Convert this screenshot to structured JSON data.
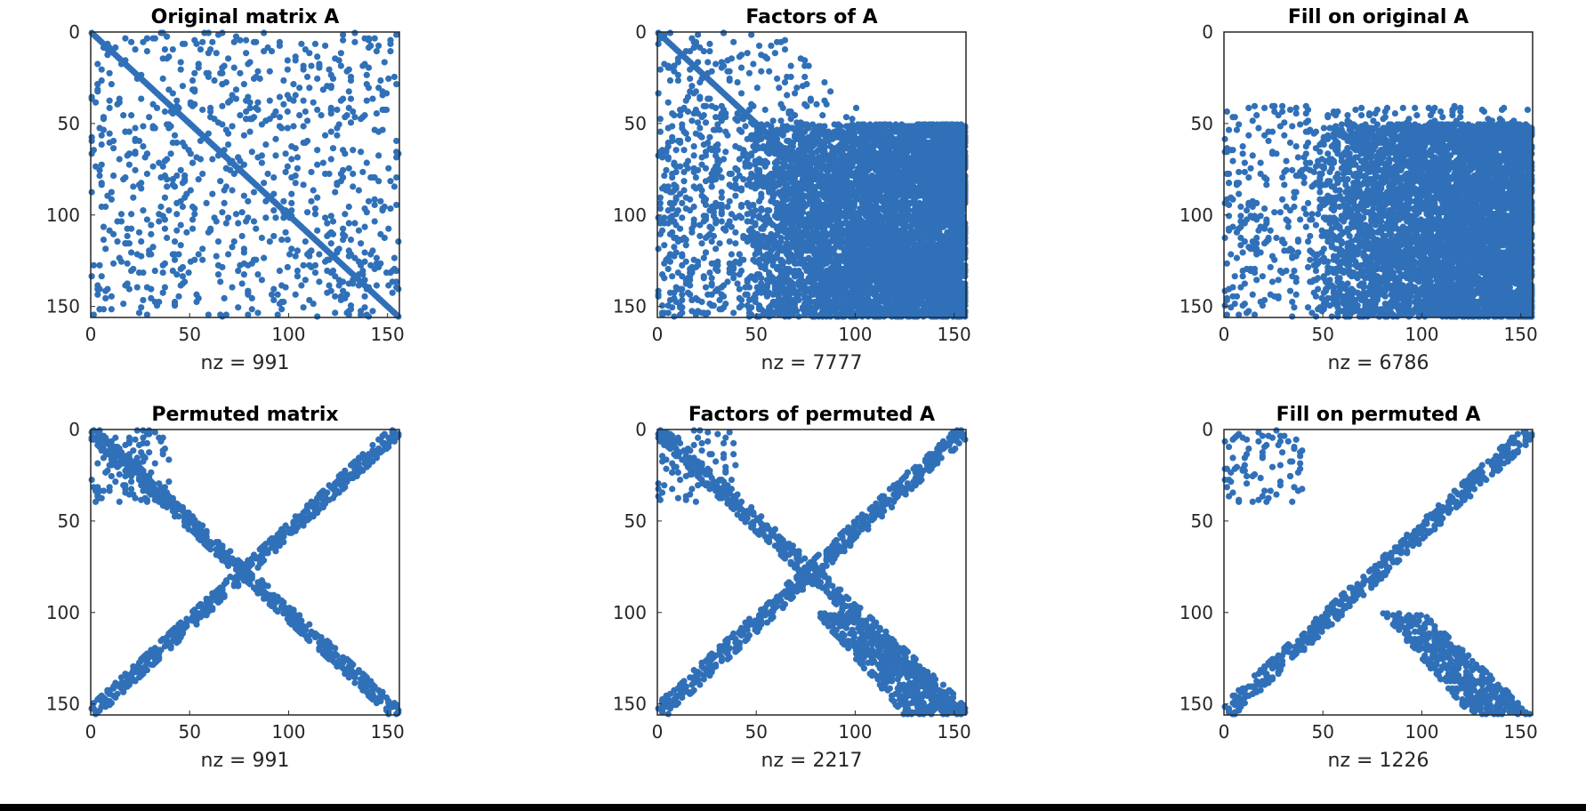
{
  "colors": {
    "marker": "#3070b8",
    "axes": "#262626",
    "background": "#ffffff"
  },
  "chart_data": [
    {
      "type": "scatter",
      "title": "Original matrix A",
      "xlabel": "nz = 991",
      "nz": 991,
      "size": 156,
      "xlim": [
        0,
        156
      ],
      "ylim": [
        156,
        0
      ],
      "xticks": [
        0,
        50,
        100,
        150
      ],
      "yticks": [
        0,
        50,
        100,
        150
      ],
      "pattern": "original",
      "grid": false
    },
    {
      "type": "scatter",
      "title": "Factors of A",
      "xlabel": "nz = 7777",
      "nz": 7777,
      "size": 156,
      "xlim": [
        0,
        156
      ],
      "ylim": [
        156,
        0
      ],
      "xticks": [
        0,
        50,
        100,
        150
      ],
      "yticks": [
        0,
        50,
        100,
        150
      ],
      "pattern": "factors",
      "grid": false
    },
    {
      "type": "scatter",
      "title": "Fill on original A",
      "xlabel": "nz = 6786",
      "nz": 6786,
      "size": 156,
      "xlim": [
        0,
        156
      ],
      "ylim": [
        156,
        0
      ],
      "xticks": [
        0,
        50,
        100,
        150
      ],
      "yticks": [
        0,
        50,
        100,
        150
      ],
      "pattern": "fill",
      "grid": false
    },
    {
      "type": "scatter",
      "title": "Permuted matrix",
      "xlabel": "nz = 991",
      "nz": 991,
      "size": 156,
      "xlim": [
        0,
        156
      ],
      "ylim": [
        156,
        0
      ],
      "xticks": [
        0,
        50,
        100,
        150
      ],
      "yticks": [
        0,
        50,
        100,
        150
      ],
      "pattern": "x-shape",
      "grid": false
    },
    {
      "type": "scatter",
      "title": "Factors of permuted A",
      "xlabel": "nz = 2217",
      "nz": 2217,
      "size": 156,
      "xlim": [
        0,
        156
      ],
      "ylim": [
        156,
        0
      ],
      "xticks": [
        0,
        50,
        100,
        150
      ],
      "yticks": [
        0,
        50,
        100,
        150
      ],
      "pattern": "x-shape-factors",
      "grid": false
    },
    {
      "type": "scatter",
      "title": "Fill on permuted A",
      "xlabel": "nz = 1226",
      "nz": 1226,
      "size": 156,
      "xlim": [
        0,
        156
      ],
      "ylim": [
        156,
        0
      ],
      "xticks": [
        0,
        50,
        100,
        150
      ],
      "yticks": [
        0,
        50,
        100,
        150
      ],
      "pattern": "x-shape-fill",
      "grid": false
    }
  ]
}
